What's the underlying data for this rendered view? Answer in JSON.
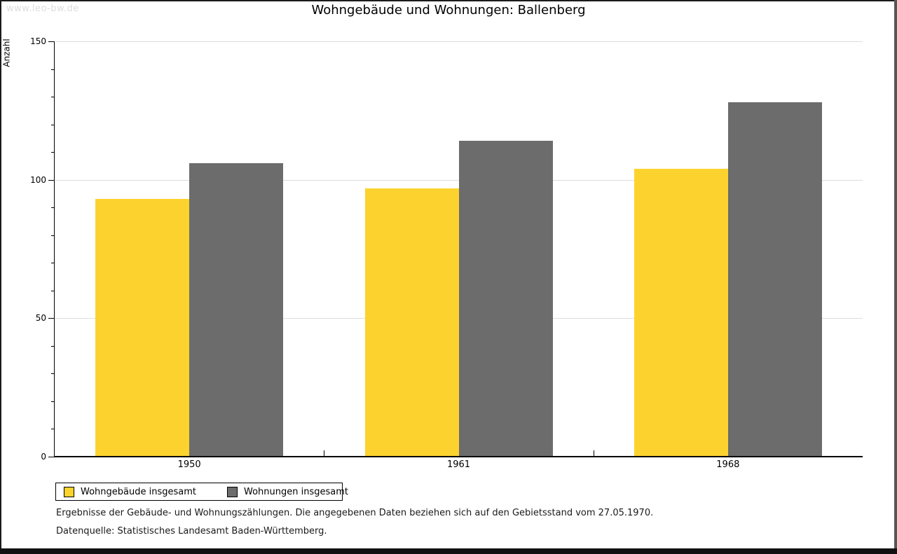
{
  "watermark": "www.leo-bw.de",
  "title": "Wohngebäude und Wohnungen: Ballenberg",
  "chart_data": {
    "type": "bar",
    "title": "Wohngebäude und Wohnungen: Ballenberg",
    "ylabel": "Anzahl",
    "xlabel": "",
    "categories": [
      "1950",
      "1961",
      "1968"
    ],
    "series": [
      {
        "name": "Wohngebäude insgesamt",
        "color": "#FCD32E",
        "values": [
          93,
          97,
          104
        ]
      },
      {
        "name": "Wohnungen insgesamt",
        "color": "#6C6C6C",
        "values": [
          106,
          114,
          128
        ]
      }
    ],
    "ylim": [
      0,
      150
    ],
    "ytick_major_step": 50,
    "ytick_minor_step": 10,
    "gridlines_at": [
      50,
      100,
      150
    ],
    "grid": "horizontal",
    "legend_position": "bottom-left"
  },
  "footnotes": [
    "Ergebnisse der Gebäude- und Wohnungszählungen. Die angegebenen Daten beziehen sich auf den Gebietsstand vom 27.05.1970.",
    "Datenquelle: Statistisches Landesamt Baden-Württemberg."
  ],
  "colors": {
    "bar_yellow": "#FCD32E",
    "bar_gray": "#6C6C6C",
    "gridline": "#DDDDDD",
    "watermark": "#DCDCDC",
    "axis": "#000000"
  }
}
